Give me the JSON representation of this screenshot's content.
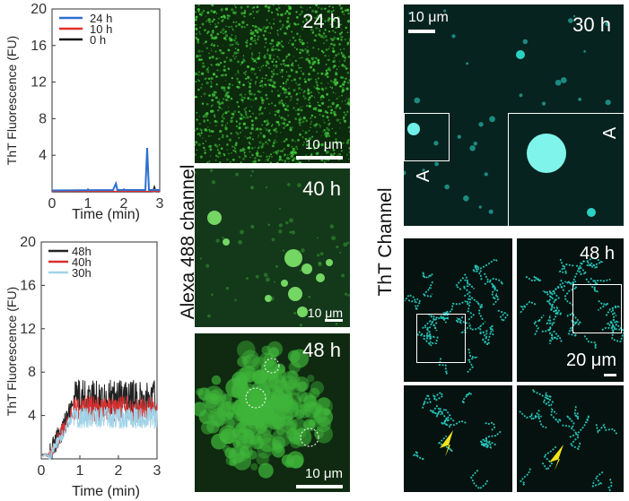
{
  "chart_data": [
    {
      "type": "line",
      "xlabel": "Time (min)",
      "ylabel": "ThT Fluorescence (FU)",
      "xlim": [
        0,
        3
      ],
      "ylim": [
        0,
        20
      ],
      "xticks": [
        "0",
        "1",
        "2",
        "3"
      ],
      "yticks": [
        "4",
        "8",
        "12",
        "16",
        "20"
      ],
      "legend_position": "top-right",
      "series": [
        {
          "name": "24 h",
          "color": "#2e6fd0",
          "x": [
            0,
            1.7,
            1.78,
            1.82,
            1.9,
            2.6,
            2.65,
            2.7,
            3
          ],
          "y": [
            0.15,
            0.2,
            0.9,
            0.2,
            0.2,
            0.2,
            4.8,
            0.2,
            0.2
          ]
        },
        {
          "name": "10 h",
          "color": "#e0302a",
          "x": [
            0,
            1,
            2,
            3
          ],
          "y": [
            0.05,
            0.05,
            0.05,
            0.05
          ]
        },
        {
          "name": "0 h",
          "color": "#111111",
          "x": [
            0,
            1,
            2,
            2.8,
            2.85,
            2.9,
            3
          ],
          "y": [
            0.0,
            0.0,
            0.0,
            0.0,
            0.6,
            0.0,
            0.0
          ]
        }
      ]
    },
    {
      "type": "line",
      "xlabel": "Time (min)",
      "ylabel": "ThT Fluorescence (FU)",
      "xlim": [
        0,
        3
      ],
      "ylim": [
        0,
        20
      ],
      "xticks": [
        "0",
        "1",
        "2",
        "3"
      ],
      "yticks": [
        "4",
        "8",
        "12",
        "16",
        "20"
      ],
      "legend_position": "top-left",
      "series": [
        {
          "name": "48h",
          "color": "#222222",
          "base": 5.0,
          "noise": 3.5
        },
        {
          "name": "40h",
          "color": "#d83030",
          "base": 4.6,
          "noise": 2.4
        },
        {
          "name": "30h",
          "color": "#9fd3e8",
          "base": 4.0,
          "noise": 2.0
        }
      ]
    }
  ],
  "side_labels": {
    "alexa": "Alexa 488 channel",
    "tht": "ThT Channel"
  },
  "green_panels": [
    {
      "time": "24 h",
      "scale": "10 μm"
    },
    {
      "time": "40 h",
      "scale": "10 μm"
    },
    {
      "time": "48 h",
      "scale": "10 μm"
    }
  ],
  "cyan_panels": {
    "p30": {
      "time": "30 h",
      "scale": "10 μm",
      "marker": "A",
      "inset_marker": "A"
    },
    "p48": {
      "time": "48 h",
      "scale": "20 μm"
    }
  },
  "colors": {
    "green_bg": "#0c2a0c",
    "green_fg": "#3fc43a",
    "cyan_bg": "#07231f",
    "cyan_fg": "#2ad1c5",
    "arrow": "#f2e61b"
  }
}
